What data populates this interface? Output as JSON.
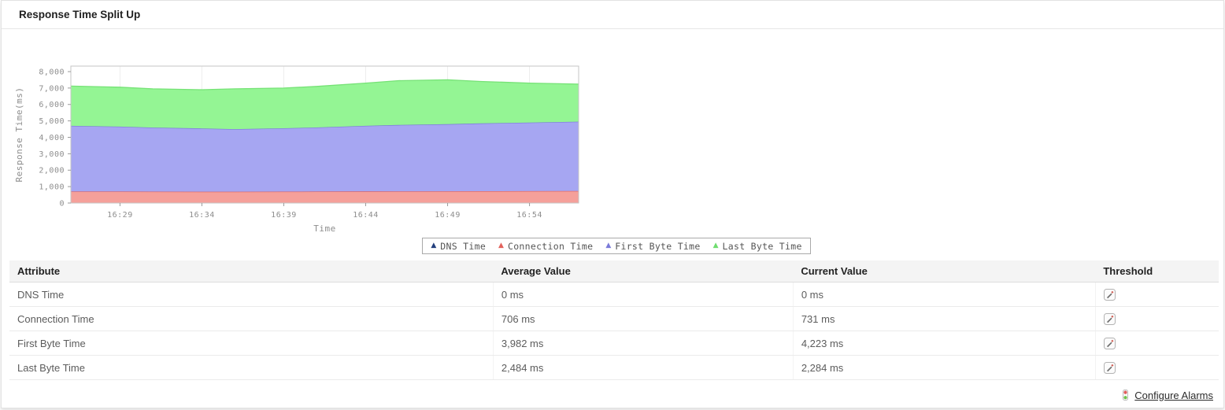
{
  "panel": {
    "title": "Response Time Split Up"
  },
  "chart_data": {
    "type": "area",
    "stacked": true,
    "title": "",
    "xlabel": "Time",
    "ylabel": "Response Time(ms)",
    "ylim": [
      0,
      8000
    ],
    "yticks": [
      0,
      1000,
      2000,
      3000,
      4000,
      5000,
      6000,
      7000,
      8000
    ],
    "ytick_labels": [
      "0",
      "1,000",
      "2,000",
      "3,000",
      "4,000",
      "5,000",
      "6,000",
      "7,000",
      "8,000"
    ],
    "xticks": [
      "16:29",
      "16:34",
      "16:39",
      "16:44",
      "16:49",
      "16:54"
    ],
    "x": [
      "16:26",
      "16:29",
      "16:31",
      "16:34",
      "16:36",
      "16:39",
      "16:41",
      "16:44",
      "16:46",
      "16:49",
      "16:51",
      "16:54",
      "16:57"
    ],
    "series": [
      {
        "name": "DNS Time",
        "fill": "#2f4a8c",
        "line": "#2f4a8c",
        "marker": "#24407e",
        "values": [
          0,
          0,
          0,
          0,
          0,
          0,
          0,
          0,
          0,
          0,
          0,
          0,
          0
        ]
      },
      {
        "name": "Connection Time",
        "fill": "#f5a09a",
        "line": "#e2625c",
        "marker": "#e2625c",
        "values": [
          700,
          700,
          695,
          690,
          690,
          695,
          700,
          705,
          710,
          715,
          720,
          725,
          731
        ]
      },
      {
        "name": "First Byte Time",
        "fill": "#a6a6f2",
        "line": "#7a7ad9",
        "marker": "#7a7ad9",
        "values": [
          4000,
          3950,
          3900,
          3850,
          3810,
          3855,
          3900,
          3995,
          4040,
          4085,
          4130,
          4175,
          4223
        ]
      },
      {
        "name": "Last Byte Time",
        "fill": "#94f594",
        "line": "#76e276",
        "marker": "#6fdd6f",
        "values": [
          2420,
          2400,
          2355,
          2360,
          2450,
          2450,
          2500,
          2600,
          2700,
          2700,
          2550,
          2400,
          2284
        ]
      }
    ],
    "legend_position": "bottom",
    "grid": "vertical-light"
  },
  "table": {
    "headers": [
      "Attribute",
      "Average Value",
      "Current Value",
      "Threshold"
    ],
    "rows": [
      {
        "attribute": "DNS Time",
        "average": "0 ms",
        "current": "0 ms"
      },
      {
        "attribute": "Connection Time",
        "average": "706 ms",
        "current": "731 ms"
      },
      {
        "attribute": "First Byte Time",
        "average": "3,982 ms",
        "current": "4,223 ms"
      },
      {
        "attribute": "Last Byte Time",
        "average": "2,484 ms",
        "current": "2,284 ms"
      }
    ]
  },
  "footer": {
    "configure_alarms_label": "Configure Alarms"
  }
}
